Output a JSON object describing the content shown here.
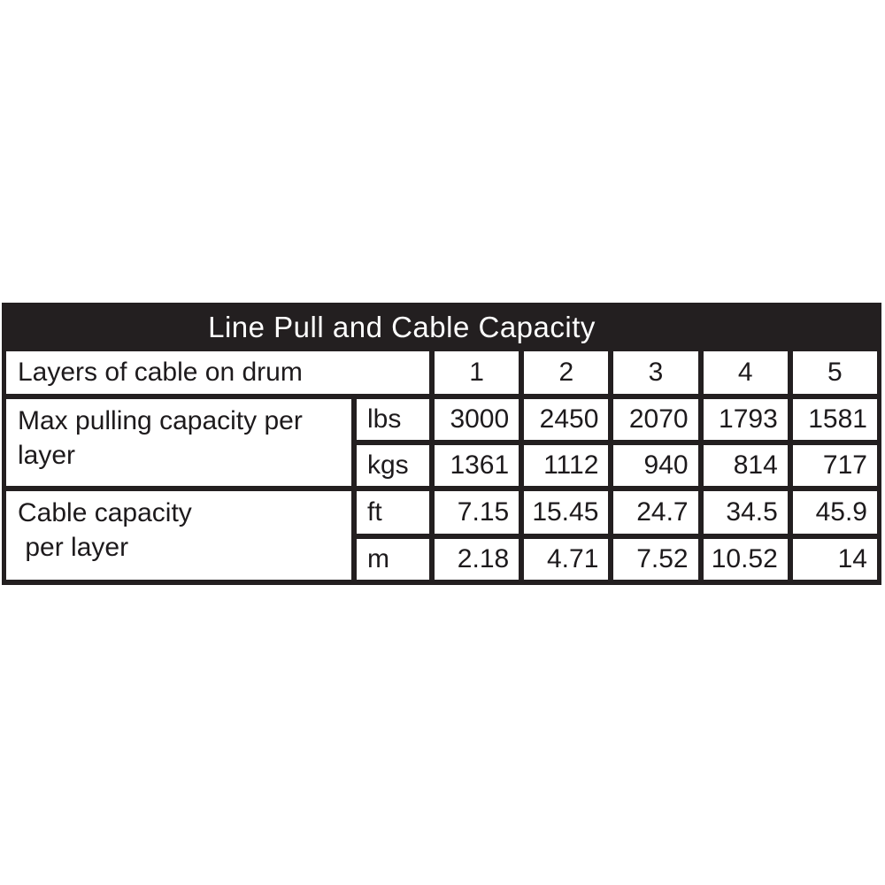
{
  "colors": {
    "table_frame_black": "#231f20",
    "cell_background": "#ffffff",
    "title_text": "#ffffff",
    "body_text": "#1d1a1c"
  },
  "table": {
    "title": "Line Pull and Cable Capacity",
    "header_row": {
      "label": "Layers of cable on drum",
      "layers": [
        "1",
        "2",
        "3",
        "4",
        "5"
      ]
    },
    "groups": [
      {
        "label": "Max pulling capacity per\nlayer",
        "rows": [
          {
            "unit": "lbs",
            "values": [
              "3000",
              "2450",
              "2070",
              "1793",
              "1581"
            ]
          },
          {
            "unit": "kgs",
            "values": [
              "1361",
              "1112",
              "940",
              "814",
              "717"
            ]
          }
        ]
      },
      {
        "label": "Cable capacity\n per layer",
        "rows": [
          {
            "unit": "ft",
            "values": [
              "7.15",
              "15.45",
              "24.7",
              "34.5",
              "45.9"
            ]
          },
          {
            "unit": "m",
            "values": [
              "2.18",
              "4.71",
              "7.52",
              "10.52",
              "14"
            ]
          }
        ]
      }
    ]
  }
}
